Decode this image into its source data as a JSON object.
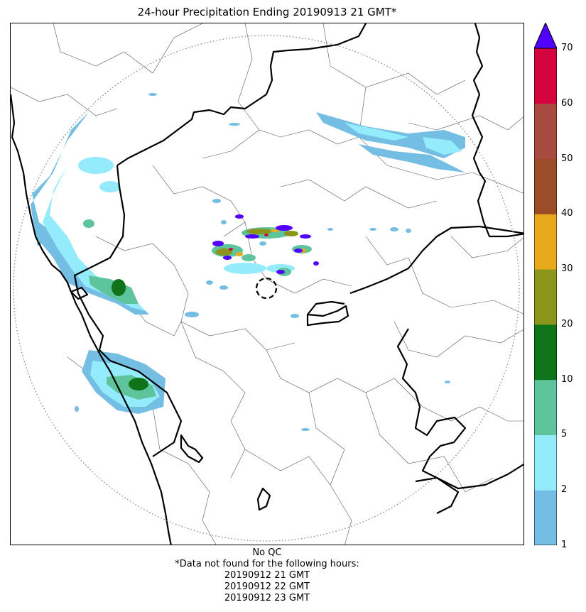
{
  "title": "24-hour Precipitation Ending 20190913 21 GMT*",
  "colorbar": {
    "ticks": [
      "1",
      "2",
      "5",
      "10",
      "20",
      "30",
      "40",
      "50",
      "60",
      "70"
    ],
    "colors": [
      "#74bde3",
      "#94ebfb",
      "#5dc49c",
      "#0f7419",
      "#8b9519",
      "#e8aa1c",
      "#9b4d27",
      "#a74b41",
      "#d4043f"
    ],
    "extend_color": "#5200ff"
  },
  "footer": {
    "qc": "No QC",
    "note": "*Data not found for the following hours:",
    "hours": [
      "20190912 21 GMT",
      "20190912 22 GMT",
      "20190912 23 GMT"
    ]
  }
}
